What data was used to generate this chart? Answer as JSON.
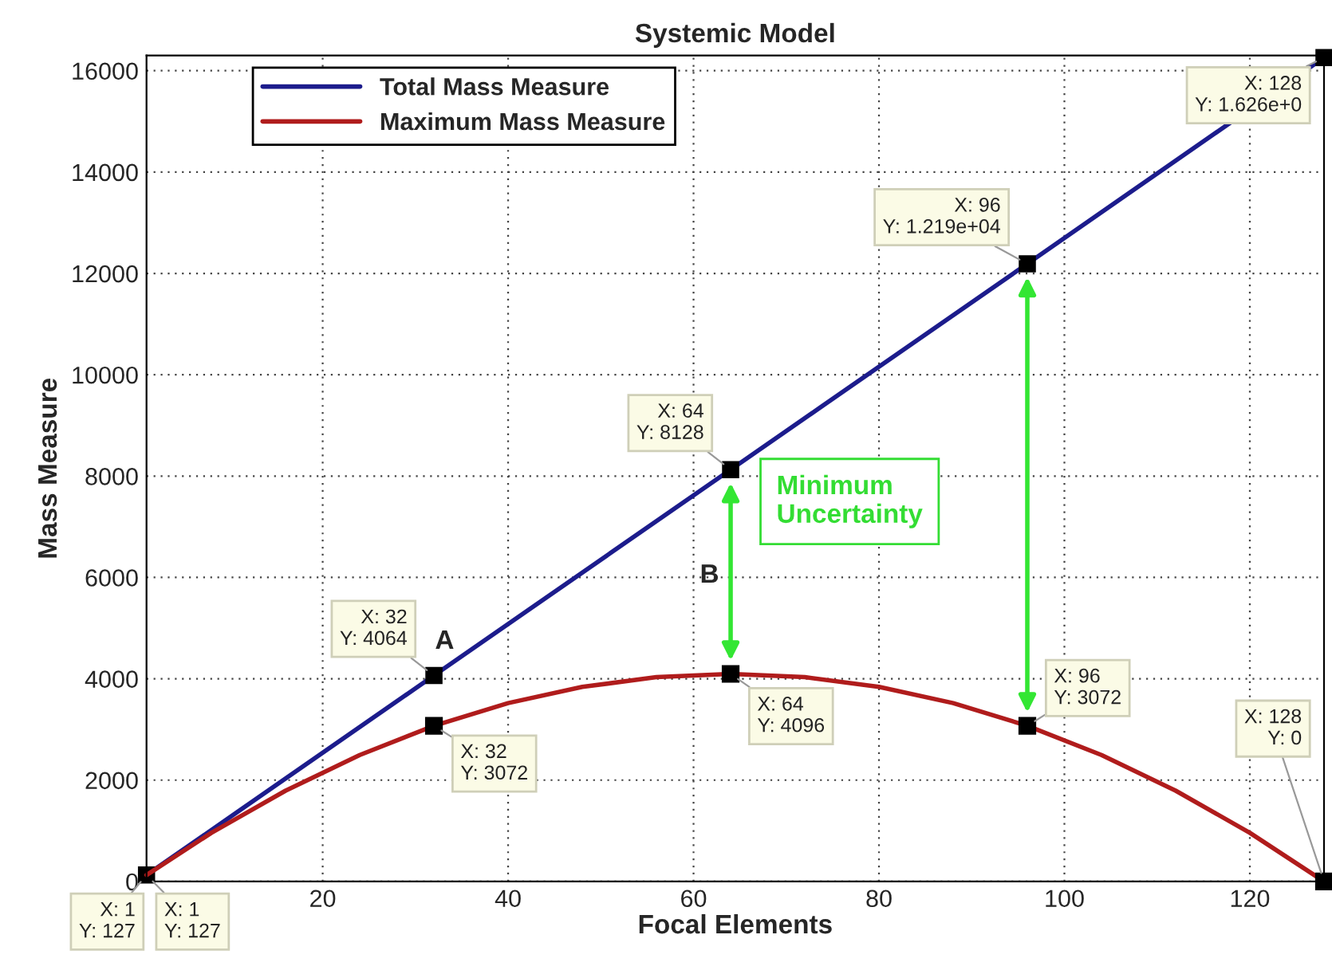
{
  "chart_data": {
    "type": "line",
    "title": "Systemic Model",
    "xlabel": "Focal Elements",
    "ylabel": "Mass Measure",
    "xlim": [
      1,
      128
    ],
    "xticks": [
      20,
      40,
      60,
      80,
      100,
      120
    ],
    "ylim": [
      0,
      16300
    ],
    "yticks": [
      0,
      2000,
      4000,
      6000,
      8000,
      10000,
      12000,
      14000,
      16000
    ],
    "grid": true,
    "legend": "top left",
    "line_style": "solid",
    "series": [
      {
        "name": "Total Mass Measure",
        "color": "#1c1c8c",
        "marker": "square",
        "x": [
          1,
          32,
          64,
          96,
          128
        ],
        "values": [
          127,
          4064,
          8128,
          12190,
          16260
        ]
      },
      {
        "name": "Maximum Mass Measure",
        "color": "#b01c1c",
        "x": [
          1,
          8,
          16,
          24,
          32,
          40,
          48,
          56,
          64,
          72,
          80,
          88,
          96,
          104,
          112,
          120,
          128
        ],
        "values": [
          127,
          960,
          1792,
          2496,
          3072,
          3520,
          3840,
          4032,
          4096,
          4032,
          3840,
          3520,
          3072,
          2496,
          1792,
          960,
          0
        ]
      }
    ],
    "annotations": [
      {
        "text": "X: 1\nY: 127",
        "x": 1,
        "y": 127
      },
      {
        "text": "X: 1\nY: 127",
        "x": 1,
        "y": 127
      },
      {
        "text": "X: 32\nY: 4064",
        "x": 32,
        "y": 4064
      },
      {
        "text": "X: 32\nY: 3072",
        "x": 32,
        "y": 3072
      },
      {
        "text": "X: 64\nY: 8128",
        "x": 64,
        "y": 8128
      },
      {
        "text": "X: 64\nY: 4096",
        "x": 64,
        "y": 4096
      },
      {
        "text": "X: 96\nY: 1.219e+04",
        "x": 96,
        "y": 12190
      },
      {
        "text": "X: 96\nY: 3072",
        "x": 96,
        "y": 3072
      },
      {
        "text": "X: 128\nY: 1.626e+0",
        "x": 128,
        "y": 16260
      },
      {
        "text": "X: 128\nY: 0",
        "x": 128,
        "y": 0
      },
      "A",
      "B",
      "Minimum\nUncertainty"
    ]
  }
}
